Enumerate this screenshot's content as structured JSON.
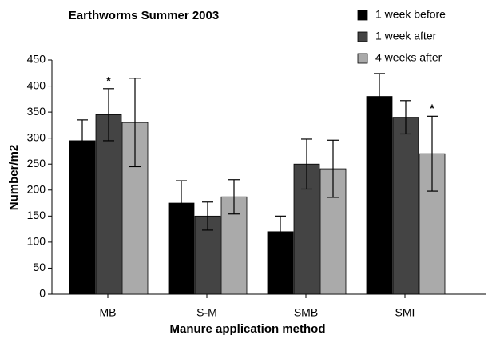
{
  "chart_data": {
    "type": "bar",
    "title": "Earthworms Summer 2003",
    "x_label": "Manure application method",
    "y_label": "Number/m2",
    "categories": [
      "MB",
      "S-M",
      "SMB",
      "SMI"
    ],
    "series": [
      {
        "name": "1 week before",
        "color": "#000000",
        "values": [
          295,
          175,
          120,
          380
        ],
        "errors": [
          40,
          43,
          30,
          44
        ]
      },
      {
        "name": "1 week after",
        "color": "#444444",
        "values": [
          345,
          150,
          250,
          340
        ],
        "errors": [
          50,
          27,
          48,
          32
        ]
      },
      {
        "name": "4 weeks after",
        "color": "#aaaaaa",
        "values": [
          330,
          187,
          241,
          270
        ],
        "errors": [
          85,
          33,
          55,
          72
        ]
      }
    ],
    "annotations": [
      {
        "text": "*",
        "category": "MB",
        "series": "1 week after"
      },
      {
        "text": "*",
        "category": "SMI",
        "series": "4 weeks after"
      }
    ],
    "ylim": [
      0,
      450
    ],
    "yticks": [
      0,
      50,
      100,
      150,
      200,
      250,
      300,
      350,
      400,
      450
    ],
    "legend": "top-right",
    "grid": false
  }
}
